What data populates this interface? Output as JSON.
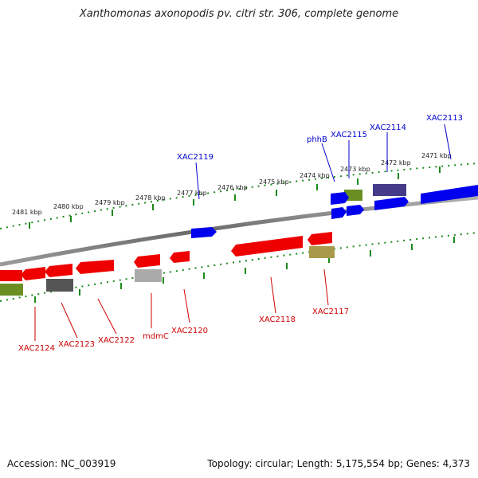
{
  "title": "Xanthomonas axonopodis pv. citri str. 306, complete genome",
  "footer": {
    "accession": "Accession: NC_003919",
    "summary": "Topology: circular; Length: 5,175,554 bp; Genes: 4,373"
  },
  "colors": {
    "forward_label": "#0000cc",
    "reverse_label": "#cc0000",
    "backbone": "#808080",
    "tick": "#1a8a1a"
  },
  "scale_ticks": [
    "2481 kbp",
    "2480 kbp",
    "2479 kbp",
    "2478 kbp",
    "2477 kbp",
    "2476 kbp",
    "2475 kbp",
    "2474 kbp",
    "2473 kbp",
    "2472 kbp",
    "2471 kbp"
  ],
  "forward_labels": [
    "XAC2113",
    "XAC2114",
    "XAC2115",
    "phhB",
    "XAC2119"
  ],
  "reverse_labels": [
    "XAC2117",
    "XAC2118",
    "XAC2120",
    "mdmC",
    "XAC2122",
    "XAC2123",
    "XAC2124"
  ],
  "feature_colors": {
    "forward_cds": "#0000ee",
    "forward_other": "#443c88",
    "forward_olive": "#6b8e23",
    "reverse_cds": "#ee0000",
    "reverse_gray": "#555555",
    "reverse_lightgray": "#aaaaaa",
    "reverse_olive": "#6b8e23",
    "reverse_khaki": "#a89a4a"
  }
}
